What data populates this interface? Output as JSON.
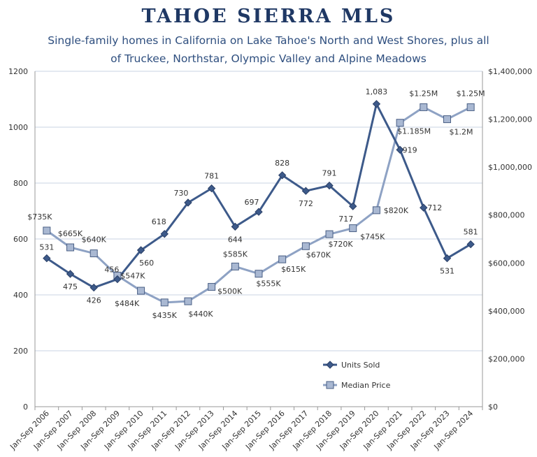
{
  "header": {
    "title": "TAHOE SIERRA MLS",
    "subtitle": "Single-family homes in California on Lake Tahoe's North and West Shores, plus all of Truckee, Northstar, Olympic Valley and Alpine Meadows"
  },
  "chart_data": {
    "type": "line",
    "categories": [
      "Jan-Sep 2006",
      "Jan-Sep 2007",
      "Jan-Sep 2008",
      "Jan-Sep 2009",
      "Jan-Sep 2010",
      "Jan-Sep 2011",
      "Jan-Sep 2012",
      "Jan-Sep 2013",
      "Jan-Sep 2014",
      "Jan-Sep 2015",
      "Jan-Sep 2016",
      "Jan-Sep 2017",
      "Jan-Sep 2018",
      "Jan-Sep 2019",
      "Jan-Sep 2020",
      "Jan-Sep 2021",
      "Jan-Sep 2022",
      "Jan-Sep 2023",
      "Jan-Sep 2024"
    ],
    "series": [
      {
        "name": "Units Sold",
        "axis": "left",
        "color": "#3d5a8a",
        "marker": "diamond",
        "values": [
          531,
          475,
          426,
          456,
          560,
          618,
          730,
          781,
          644,
          697,
          828,
          772,
          791,
          717,
          1083,
          919,
          712,
          531,
          581
        ],
        "labels": [
          "531",
          "475",
          "426",
          "456",
          "560",
          "618",
          "730",
          "781",
          "644",
          "697",
          "828",
          "772",
          "791",
          "717",
          "1,083",
          "919",
          "712",
          "531",
          "581"
        ]
      },
      {
        "name": "Median Price",
        "axis": "right",
        "color": "#8ea2c4",
        "marker": "square",
        "values": [
          735000,
          665000,
          640000,
          547000,
          484000,
          435000,
          440000,
          500000,
          585000,
          555000,
          615000,
          670000,
          720000,
          745000,
          820000,
          1185000,
          1250000,
          1200000,
          1250000
        ],
        "labels": [
          "$735K",
          "$665K",
          "$640K",
          "$547K",
          "$484K",
          "$435K",
          "$440K",
          "$500K",
          "$585K",
          "$555K",
          "$615K",
          "$670K",
          "$720K",
          "$745K",
          "$820K",
          "$1.185M",
          "$1.25M",
          "$1.2M",
          "$1.25M"
        ]
      }
    ],
    "y_left": {
      "min": 0,
      "max": 1200,
      "ticks": [
        "0",
        "200",
        "400",
        "600",
        "800",
        "1000",
        "1200"
      ]
    },
    "y_right": {
      "min": 0,
      "max": 1400000,
      "ticks": [
        "$0",
        "$200,000",
        "$400,000",
        "$600,000",
        "$800,000",
        "$1,000,000",
        "$1,200,000",
        "$1,400,000"
      ]
    },
    "grid": true,
    "legend_position": "bottom-right",
    "gridline_color": "#c9d3e3",
    "axis_color": "#999999"
  }
}
